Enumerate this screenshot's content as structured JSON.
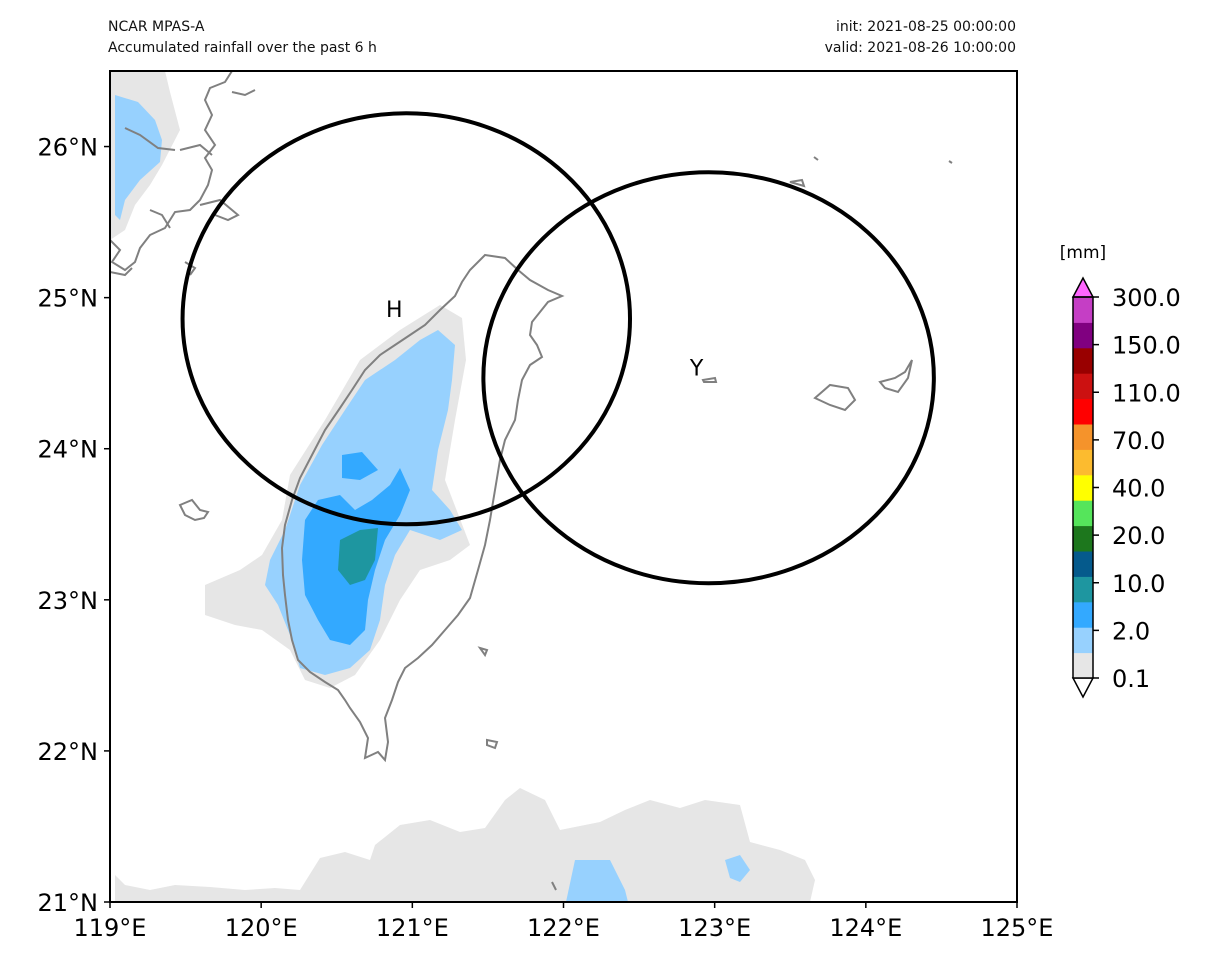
{
  "header": {
    "model": "NCAR MPAS-A",
    "description": "Accumulated rainfall over the past 6 h",
    "init": "init: 2021-08-25 00:00:00",
    "valid": "valid: 2021-08-26 10:00:00"
  },
  "map": {
    "lon_range": [
      119,
      125
    ],
    "lat_range": [
      21,
      26.5
    ],
    "lon_ticks": [
      "119°E",
      "120°E",
      "121°E",
      "122°E",
      "123°E",
      "124°E",
      "125°E"
    ],
    "lat_ticks": [
      "21°N",
      "22°N",
      "23°N",
      "24°N",
      "25°N",
      "26°N"
    ],
    "coastline_color": "#808080",
    "markers": [
      {
        "label": "H",
        "lon": 120.96,
        "lat": 24.86,
        "radius_lon": 1.48,
        "radius_lat": 1.36
      },
      {
        "label": "Y",
        "lon": 122.96,
        "lat": 24.47,
        "radius_lon": 1.49,
        "radius_lat": 1.36
      }
    ]
  },
  "colorbar": {
    "unit": "[mm]",
    "tick_labels": [
      "0.1",
      "2.0",
      "10.0",
      "20.0",
      "40.0",
      "70.0",
      "110.0",
      "150.0",
      "300.0"
    ],
    "colors": [
      "#ffffff",
      "#e6e6e6",
      "#97d1fe",
      "#33a9ff",
      "#1e96a0",
      "#055a8c",
      "#1d771d",
      "#55e55b",
      "#ffff00",
      "#fcbb2f",
      "#f5932b",
      "#ff0000",
      "#cc1111",
      "#990000",
      "#800080",
      "#c53ec5",
      "#ff66ff"
    ],
    "extend": "both"
  }
}
